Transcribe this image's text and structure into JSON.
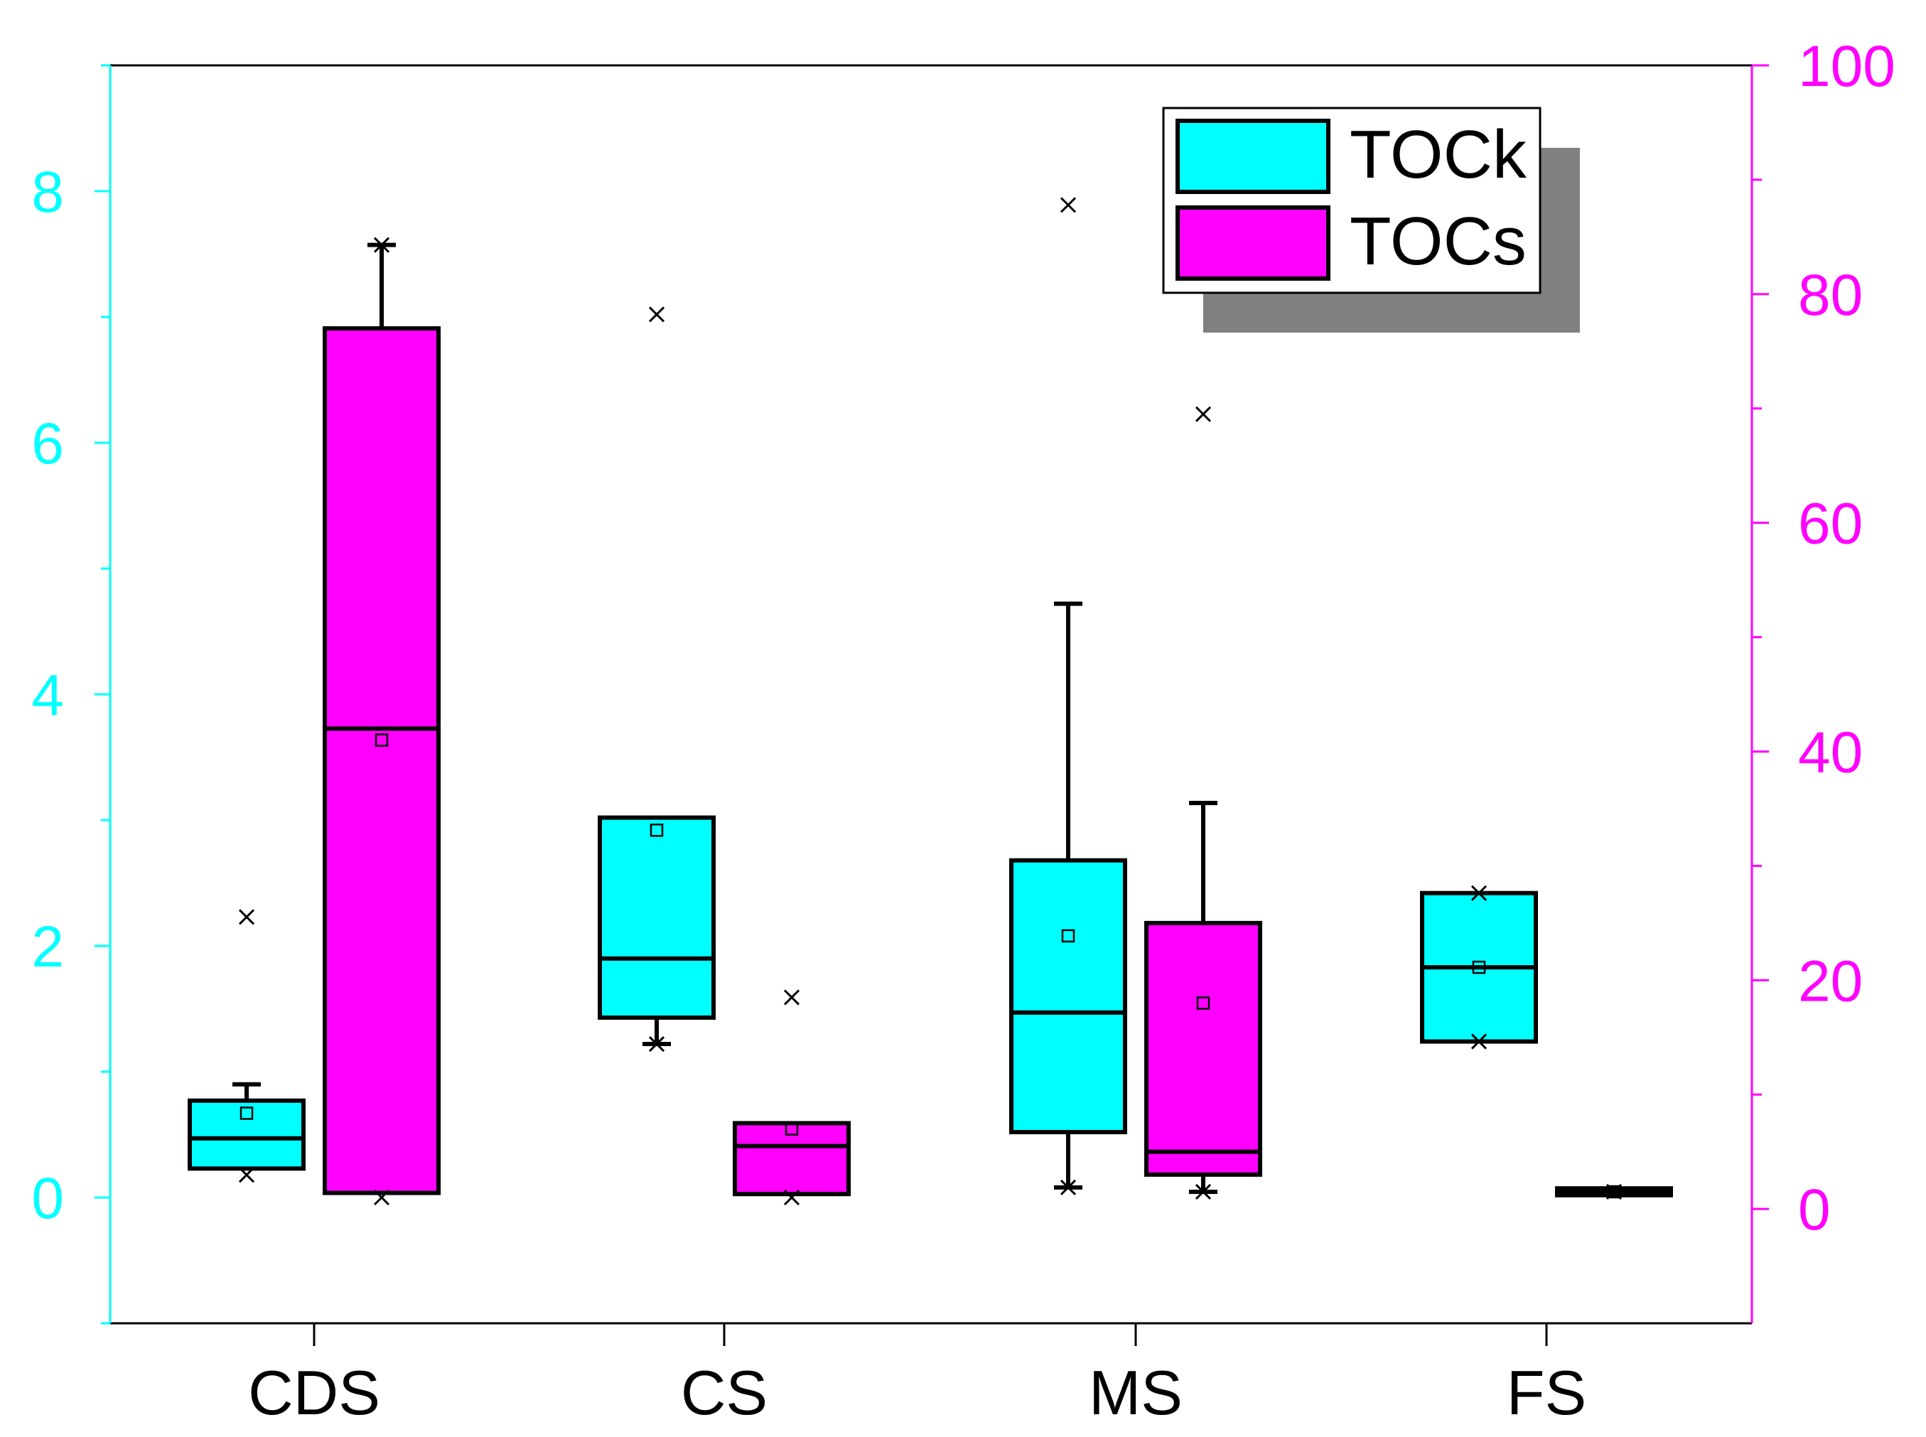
{
  "chart_data": {
    "type": "box",
    "categories": [
      "CDS",
      "CS",
      "MS",
      "FS"
    ],
    "left_axis": {
      "color": "#00ffff",
      "range": [
        -1,
        9
      ],
      "major_ticks": [
        0,
        2,
        4,
        6,
        8
      ],
      "minor_ticks": [
        -1,
        1,
        3,
        5,
        7,
        9
      ]
    },
    "right_axis": {
      "color": "#ff00ff",
      "range": [
        -10,
        100
      ],
      "major_ticks": [
        0,
        20,
        40,
        60,
        80,
        100
      ],
      "minor_ticks": [
        10,
        30,
        50,
        70,
        90
      ]
    },
    "legend": {
      "position": "top-right",
      "items": [
        {
          "label": "TOCk",
          "color": "#00ffff"
        },
        {
          "label": "TOCs",
          "color": "#ff00ff"
        }
      ]
    },
    "series": [
      {
        "name": "TOCk",
        "axis": "left",
        "color": "#00ffff",
        "boxes": [
          {
            "category": "CDS",
            "q1": 0.23,
            "median": 0.47,
            "q3": 0.77,
            "whisker_low": 0.23,
            "whisker_high": 0.9,
            "mean": 0.67,
            "extremes": [
              2.23,
              0.18
            ]
          },
          {
            "category": "CS",
            "q1": 1.43,
            "median": 1.9,
            "q3": 3.02,
            "whisker_low": 1.22,
            "whisker_high": 3.02,
            "mean": 2.92,
            "extremes": [
              7.02,
              1.22
            ]
          },
          {
            "category": "MS",
            "q1": 0.52,
            "median": 1.47,
            "q3": 2.68,
            "whisker_low": 0.08,
            "whisker_high": 4.72,
            "mean": 2.08,
            "extremes": [
              7.89,
              0.08
            ]
          },
          {
            "category": "FS",
            "q1": 1.24,
            "median": 1.83,
            "q3": 2.42,
            "whisker_low": 1.24,
            "whisker_high": 2.42,
            "mean": 1.83,
            "extremes": [
              2.42,
              1.24
            ]
          }
        ]
      },
      {
        "name": "TOCs",
        "axis": "right",
        "color": "#ff00ff",
        "boxes": [
          {
            "category": "CDS",
            "q1": 1.4,
            "median": 42.0,
            "q3": 77.0,
            "whisker_low": 1.4,
            "whisker_high": 84.3,
            "mean": 41.0,
            "extremes": [
              84.3,
              1.0
            ]
          },
          {
            "category": "CS",
            "q1": 1.3,
            "median": 5.5,
            "q3": 7.5,
            "whisker_low": 1.3,
            "whisker_high": 7.5,
            "mean": 7.0,
            "extremes": [
              18.5,
              1.0
            ]
          },
          {
            "category": "MS",
            "q1": 3.0,
            "median": 5.0,
            "q3": 25.0,
            "whisker_low": 1.5,
            "whisker_high": 35.5,
            "mean": 18.0,
            "extremes": [
              69.5,
              1.5
            ]
          },
          {
            "category": "FS",
            "q1": 1.2,
            "median": 1.5,
            "q3": 1.8,
            "whisker_low": 1.2,
            "whisker_high": 1.8,
            "mean": 1.5,
            "extremes": [
              1.5
            ]
          }
        ]
      }
    ]
  }
}
